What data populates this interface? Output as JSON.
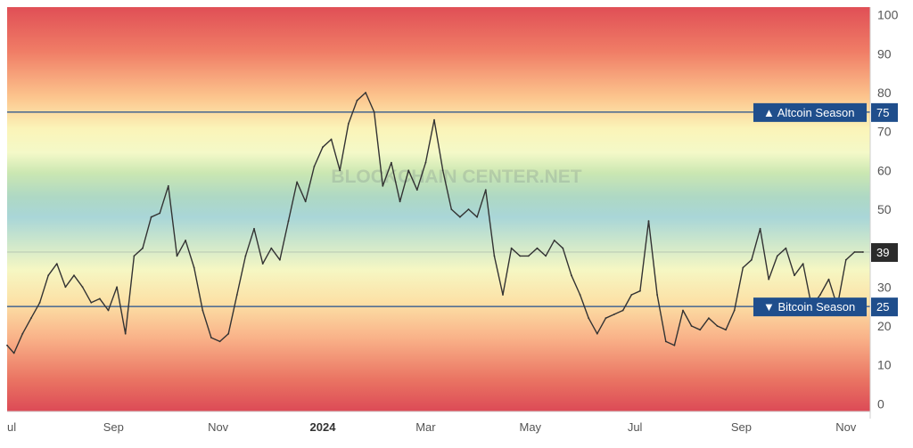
{
  "chart_data": {
    "type": "line",
    "title": "",
    "xlabel": "",
    "ylabel": "",
    "ylim": [
      -2,
      102
    ],
    "y_ticks": [
      0,
      10,
      20,
      30,
      40,
      50,
      60,
      70,
      80,
      90,
      100
    ],
    "x_ticks": [
      {
        "label": "ul",
        "date": "2023-07-01",
        "bold": false
      },
      {
        "label": "Sep",
        "date": "2023-09-01",
        "bold": false
      },
      {
        "label": "Nov",
        "date": "2023-11-01",
        "bold": false
      },
      {
        "label": "2024",
        "date": "2024-01-01",
        "bold": true
      },
      {
        "label": "Mar",
        "date": "2024-03-01",
        "bold": false
      },
      {
        "label": "May",
        "date": "2024-05-01",
        "bold": false
      },
      {
        "label": "Jul",
        "date": "2024-07-01",
        "bold": false
      },
      {
        "label": "Sep",
        "date": "2024-09-01",
        "bold": false
      },
      {
        "label": "Nov",
        "date": "2024-11-01",
        "bold": false
      }
    ],
    "watermark": "BLOCKCHAIN CENTER.NET",
    "grid": false,
    "background": "red-yellow-green-blue gradient by value",
    "reference_lines": [
      {
        "value": 75,
        "label": "▲ Altcoin Season",
        "value_label": "75",
        "color": "#1f4e8c"
      },
      {
        "value": 25,
        "label": "▼ Bitcoin Season",
        "value_label": "25",
        "color": "#1f4e8c"
      }
    ],
    "current_value": {
      "value": 39,
      "label": "39"
    },
    "colors": {
      "line": "#333333",
      "ref": "#1f4e8c",
      "current": "#2b2b2b"
    },
    "series": [
      {
        "x": [
          "2023-07-01",
          "2023-07-05",
          "2023-07-10",
          "2023-07-15",
          "2023-07-20",
          "2023-07-25",
          "2023-07-30",
          "2023-08-04",
          "2023-08-09",
          "2023-08-14",
          "2023-08-19",
          "2023-08-24",
          "2023-08-29",
          "2023-09-03",
          "2023-09-08",
          "2023-09-13",
          "2023-09-18",
          "2023-09-23",
          "2023-09-28",
          "2023-10-03",
          "2023-10-08",
          "2023-10-13",
          "2023-10-18",
          "2023-10-23",
          "2023-10-28",
          "2023-11-02",
          "2023-11-07",
          "2023-11-12",
          "2023-11-17",
          "2023-11-22",
          "2023-11-27",
          "2023-12-02",
          "2023-12-07",
          "2023-12-12",
          "2023-12-17",
          "2023-12-22",
          "2023-12-27",
          "2024-01-01",
          "2024-01-06",
          "2024-01-11",
          "2024-01-16",
          "2024-01-21",
          "2024-01-26",
          "2024-01-31",
          "2024-02-05",
          "2024-02-10",
          "2024-02-15",
          "2024-02-20",
          "2024-02-25",
          "2024-03-01",
          "2024-03-06",
          "2024-03-11",
          "2024-03-16",
          "2024-03-21",
          "2024-03-26",
          "2024-03-31",
          "2024-04-05",
          "2024-04-10",
          "2024-04-15",
          "2024-04-20",
          "2024-04-25",
          "2024-04-30",
          "2024-05-05",
          "2024-05-10",
          "2024-05-15",
          "2024-05-20",
          "2024-05-25",
          "2024-05-30",
          "2024-06-04",
          "2024-06-09",
          "2024-06-14",
          "2024-06-19",
          "2024-06-24",
          "2024-06-29",
          "2024-07-04",
          "2024-07-09",
          "2024-07-14",
          "2024-07-19",
          "2024-07-24",
          "2024-07-29",
          "2024-08-03",
          "2024-08-08",
          "2024-08-13",
          "2024-08-18",
          "2024-08-23",
          "2024-08-28",
          "2024-09-02",
          "2024-09-07",
          "2024-09-12",
          "2024-09-17",
          "2024-09-22",
          "2024-09-27",
          "2024-10-02",
          "2024-10-07",
          "2024-10-12",
          "2024-10-17",
          "2024-10-22",
          "2024-10-27",
          "2024-11-01",
          "2024-11-06",
          "2024-11-11"
        ],
        "values": [
          15,
          13,
          18,
          22,
          26,
          33,
          36,
          30,
          33,
          30,
          26,
          27,
          24,
          30,
          18,
          38,
          40,
          48,
          49,
          56,
          38,
          42,
          35,
          24,
          17,
          16,
          18,
          28,
          38,
          45,
          36,
          40,
          37,
          47,
          57,
          52,
          61,
          66,
          68,
          60,
          72,
          78,
          80,
          75,
          56,
          62,
          52,
          60,
          55,
          62,
          73,
          60,
          50,
          48,
          50,
          48,
          55,
          38,
          28,
          40,
          38,
          38,
          40,
          38,
          42,
          40,
          33,
          28,
          22,
          18,
          22,
          23,
          24,
          28,
          29,
          47,
          28,
          16,
          15,
          24,
          20,
          19,
          22,
          20,
          19,
          24,
          35,
          37,
          45,
          32,
          38,
          40,
          33,
          36,
          25,
          28,
          32,
          25,
          37,
          39,
          39
        ]
      }
    ]
  }
}
